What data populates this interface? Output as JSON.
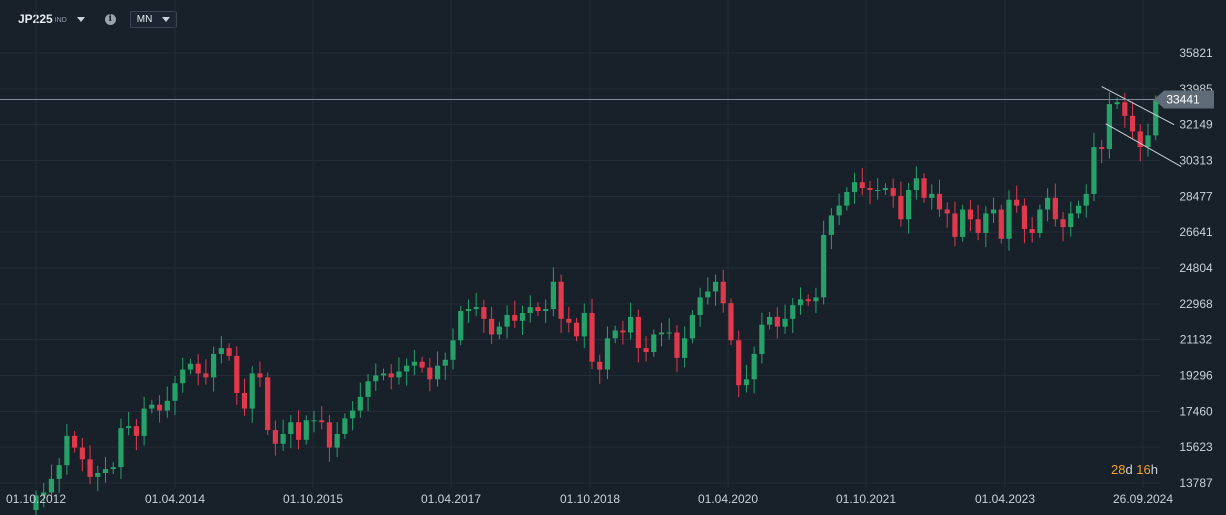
{
  "header": {
    "symbol": "JP225",
    "symbol_type": "IND",
    "timeframe": "MN"
  },
  "countdown": {
    "days": "28",
    "d_unit": "d",
    "hours": "16",
    "h_unit": "h"
  },
  "chart_data": {
    "type": "candlestick",
    "yticks": [
      13787,
      15623,
      17460,
      19296,
      21132,
      22968,
      24804,
      26641,
      28477,
      30313,
      32149,
      33985,
      35821
    ],
    "xticks": [
      "01.10.2012",
      "01.04.2014",
      "01.10.2015",
      "01.04.2017",
      "01.10.2018",
      "01.04.2020",
      "01.10.2021",
      "01.04.2023",
      "26.09.2024"
    ],
    "ylim": [
      13787,
      35821
    ],
    "current_price": 33441,
    "grid": true,
    "colors": {
      "up": "#26a269",
      "down": "#e0394c",
      "background": "#18202a",
      "grid": "#232d38"
    },
    "closes": [
      13150,
      13300,
      14000,
      14700,
      16200,
      15600,
      15000,
      14100,
      14300,
      14500,
      14600,
      16600,
      16700,
      16200,
      17600,
      17800,
      17500,
      18000,
      18900,
      19600,
      19900,
      19400,
      19200,
      20400,
      20700,
      20300,
      18400,
      17600,
      19400,
      19200,
      16500,
      15800,
      16300,
      16900,
      16000,
      17000,
      17000,
      16900,
      15600,
      16300,
      17100,
      17500,
      18200,
      19000,
      19300,
      19400,
      19200,
      19500,
      19800,
      20000,
      19700,
      19100,
      19800,
      20100,
      21100,
      22600,
      22700,
      22800,
      22200,
      21400,
      21800,
      22400,
      22100,
      22500,
      22800,
      22600,
      22700,
      24100,
      22200,
      22000,
      21300,
      22500,
      20000,
      19600,
      21200,
      21600,
      21500,
      22300,
      20700,
      20500,
      21400,
      21500,
      21500,
      20200,
      21200,
      22400,
      23300,
      23600,
      24100,
      23000,
      21100,
      18800,
      19100,
      20400,
      21900,
      22300,
      21800,
      22200,
      22900,
      23200,
      23100,
      23300,
      26500,
      27500,
      28000,
      28700,
      29200,
      28900,
      28800,
      28800,
      28900,
      28500,
      27300,
      28800,
      29400,
      28400,
      28600,
      27800,
      27600,
      26400,
      27800,
      27300,
      26600,
      27600,
      27800,
      26300,
      28300,
      28000,
      26800,
      26600,
      27800,
      28400,
      27300,
      26900,
      27600,
      28000,
      28600,
      31000,
      30900,
      33200,
      33300,
      32600,
      31800,
      31000,
      31600,
      33400
    ],
    "open_year": 2012,
    "open_month": 9
  }
}
